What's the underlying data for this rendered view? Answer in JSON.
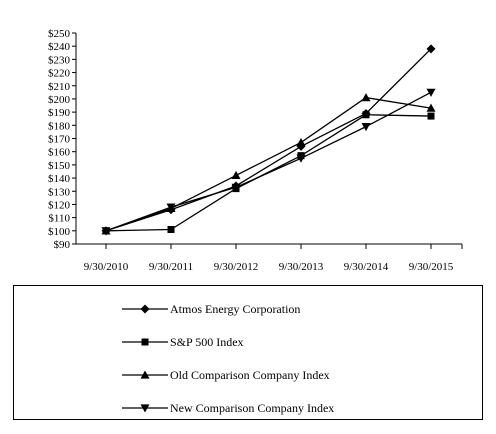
{
  "chart_data": {
    "type": "line",
    "categories": [
      "9/30/2010",
      "9/30/2011",
      "9/30/2012",
      "9/30/2013",
      "9/30/2014",
      "9/30/2015"
    ],
    "ylim": [
      90,
      250
    ],
    "yticks": [
      "$90",
      "$100",
      "$110",
      "$120",
      "$130",
      "$140",
      "$150",
      "$160",
      "$170",
      "$180",
      "$190",
      "$200",
      "$210",
      "$220",
      "$230",
      "$240",
      "$250"
    ],
    "grid": false,
    "legend_position": "bottom",
    "series": [
      {
        "name": "Atmos Energy Corporation",
        "marker": "diamond",
        "values": [
          100,
          116,
          134,
          164,
          189,
          238
        ]
      },
      {
        "name": "S&P 500 Index",
        "marker": "square",
        "values": [
          100,
          101,
          132,
          157,
          188,
          187
        ]
      },
      {
        "name": "Old Comparison Company Index",
        "marker": "triangle-up",
        "values": [
          100,
          117,
          142,
          167,
          201,
          193
        ]
      },
      {
        "name": "New Comparison Company Index",
        "marker": "triangle-down",
        "values": [
          100,
          118,
          133,
          155,
          179,
          205
        ]
      }
    ]
  }
}
